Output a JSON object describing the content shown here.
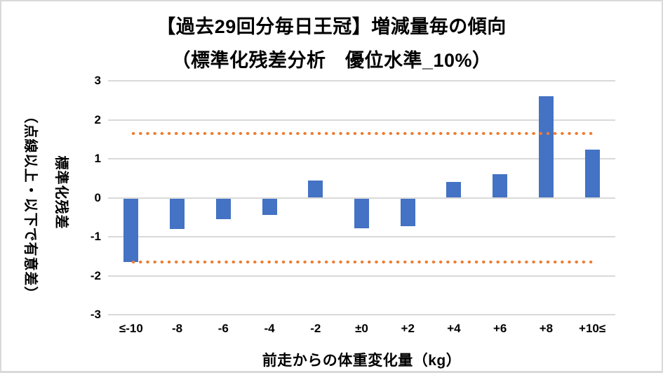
{
  "page": {
    "background": "#FFFFFF",
    "border_color": "#D9D9D9"
  },
  "chart_data": {
    "type": "bar",
    "title_line1": "【過去29回分毎日王冠】増減量毎の傾向",
    "title_line2": "（標準化残差分析　優位水準_10%）",
    "categories": [
      "≤-10",
      "-8",
      "-6",
      "-4",
      "-2",
      "±0",
      "+2",
      "+4",
      "+6",
      "+8",
      "+10≤"
    ],
    "values": [
      -1.63,
      -0.78,
      -0.54,
      -0.43,
      0.45,
      -0.76,
      -0.71,
      0.41,
      0.61,
      2.6,
      1.23
    ],
    "xlabel": "前走からの体重変化量（kg）",
    "ylabel_line1": "標準化残差",
    "ylabel_line2": "（点線以上・以下で有意差）",
    "ylim": [
      -3,
      3
    ],
    "yticks": [
      3,
      2,
      1,
      0,
      -1,
      -2,
      -3
    ],
    "thresholds": {
      "upper": 1.645,
      "lower": -1.645,
      "style": "dotted"
    },
    "colors": {
      "bar": "#4472C4",
      "threshold": "#ED7D31",
      "gridline": "#D9D9D9",
      "text": "#000000"
    },
    "grid": true,
    "legend_position": "none"
  }
}
